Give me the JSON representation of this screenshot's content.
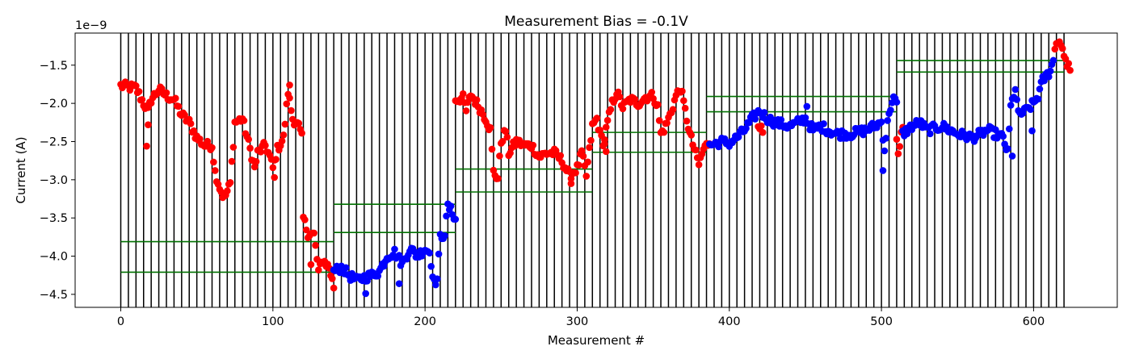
{
  "chart_data": {
    "type": "scatter",
    "title": "Measurement Bias = -0.1V",
    "xlabel": "Measurement #",
    "ylabel": "Current (A)",
    "y_exponent_label": "1e−9",
    "xlim": [
      -30,
      655
    ],
    "ylim": [
      -4.67,
      -1.08
    ],
    "xticks": [
      0,
      100,
      200,
      300,
      400,
      500,
      600
    ],
    "xtick_labels": [
      "0",
      "100",
      "200",
      "300",
      "400",
      "500",
      "600"
    ],
    "yticks": [
      -4.5,
      -4.0,
      -3.5,
      -3.0,
      -2.5,
      -2.0,
      -1.5
    ],
    "ytick_labels": [
      "−4.5",
      "−4.0",
      "−3.5",
      "−3.0",
      "−2.5",
      "−2.0",
      "−1.5"
    ],
    "vertical_lines": {
      "color": "#000000",
      "x": [
        0,
        5,
        10,
        15,
        20,
        25,
        30,
        35,
        40,
        45,
        50,
        55,
        60,
        65,
        70,
        75,
        80,
        85,
        90,
        95,
        100,
        105,
        110,
        115,
        120,
        125,
        130,
        135,
        140,
        145,
        150,
        155,
        160,
        165,
        170,
        175,
        180,
        185,
        190,
        195,
        200,
        205,
        210,
        215,
        220,
        225,
        230,
        235,
        240,
        245,
        250,
        255,
        260,
        265,
        270,
        275,
        280,
        285,
        290,
        295,
        300,
        305,
        310,
        315,
        320,
        325,
        330,
        335,
        340,
        345,
        350,
        355,
        360,
        365,
        370,
        375,
        380,
        385,
        390,
        395,
        400,
        405,
        410,
        415,
        420,
        425,
        430,
        435,
        440,
        445,
        450,
        455,
        460,
        465,
        470,
        475,
        480,
        485,
        490,
        495,
        500,
        505,
        510,
        515,
        520,
        525,
        530,
        535,
        540,
        545,
        550,
        555,
        560,
        565,
        570,
        575,
        580,
        585,
        590,
        595,
        600,
        605,
        610,
        615,
        620
      ]
    },
    "green_lines": {
      "color": "#007000",
      "segments": [
        {
          "x": [
            0,
            140
          ],
          "y": -3.81
        },
        {
          "x": [
            0,
            140
          ],
          "y": -4.21
        },
        {
          "x": [
            140,
            220
          ],
          "y": -3.32
        },
        {
          "x": [
            140,
            220
          ],
          "y": -3.69
        },
        {
          "x": [
            220,
            310
          ],
          "y": -2.86
        },
        {
          "x": [
            220,
            310
          ],
          "y": -3.16
        },
        {
          "x": [
            310,
            385
          ],
          "y": -2.38
        },
        {
          "x": [
            310,
            385
          ],
          "y": -2.64
        },
        {
          "x": [
            385,
            510
          ],
          "y": -1.91
        },
        {
          "x": [
            385,
            510
          ],
          "y": -2.11
        },
        {
          "x": [
            510,
            620
          ],
          "y": -1.44
        },
        {
          "x": [
            510,
            620
          ],
          "y": -1.59
        }
      ]
    },
    "series": [
      {
        "color": "#ff0000",
        "segments": [
          {
            "x0": 0,
            "knots": [
              [
                0,
                -1.77
              ],
              [
                10,
                -1.8
              ],
              [
                15,
                -2.0
              ],
              [
                18,
                -2.1
              ],
              [
                20,
                -1.95
              ],
              [
                25,
                -1.82
              ],
              [
                30,
                -1.9
              ],
              [
                35,
                -1.95
              ],
              [
                40,
                -2.15
              ],
              [
                45,
                -2.25
              ],
              [
                50,
                -2.45
              ],
              [
                55,
                -2.55
              ],
              [
                60,
                -2.55
              ],
              [
                62,
                -2.9
              ],
              [
                65,
                -3.1
              ],
              [
                68,
                -3.25
              ],
              [
                72,
                -3.05
              ],
              [
                75,
                -2.25
              ],
              [
                80,
                -2.2
              ],
              [
                85,
                -2.6
              ],
              [
                88,
                -2.85
              ],
              [
                90,
                -2.65
              ],
              [
                95,
                -2.55
              ],
              [
                98,
                -2.7
              ],
              [
                100,
                -2.85
              ],
              [
                103,
                -2.6
              ],
              [
                107,
                -2.45
              ],
              [
                110,
                -1.85
              ],
              [
                113,
                -2.2
              ],
              [
                117,
                -2.3
              ],
              [
                119,
                -2.45
              ],
              [
                120,
                -3.5
              ],
              [
                123,
                -3.7
              ],
              [
                127,
                -3.72
              ],
              [
                130,
                -4.2
              ],
              [
                133,
                -4.05
              ],
              [
                137,
                -4.15
              ],
              [
                140,
                -4.4
              ]
            ],
            "spikes": [
              [
                17,
                -2.56
              ],
              [
                18,
                -2.28
              ],
              [
                111,
                -1.76
              ],
              [
                101,
                -2.97
              ],
              [
                125,
                -4.11
              ]
            ]
          },
          {
            "x0": 220,
            "knots": [
              [
                220,
                -1.95
              ],
              [
                225,
                -1.93
              ],
              [
                227,
                -2.1
              ],
              [
                230,
                -1.88
              ],
              [
                235,
                -2.03
              ],
              [
                240,
                -2.2
              ],
              [
                243,
                -2.35
              ],
              [
                245,
                -2.9
              ],
              [
                248,
                -2.98
              ],
              [
                250,
                -2.5
              ],
              [
                253,
                -2.35
              ],
              [
                255,
                -2.65
              ],
              [
                260,
                -2.5
              ],
              [
                265,
                -2.55
              ],
              [
                270,
                -2.55
              ],
              [
                275,
                -2.7
              ],
              [
                280,
                -2.65
              ],
              [
                285,
                -2.65
              ],
              [
                290,
                -2.75
              ],
              [
                295,
                -2.95
              ],
              [
                300,
                -2.85
              ],
              [
                303,
                -2.65
              ],
              [
                306,
                -2.95
              ],
              [
                310,
                -2.3
              ],
              [
                313,
                -2.2
              ],
              [
                315,
                -2.4
              ],
              [
                318,
                -2.55
              ]
            ],
            "spikes": [
              [
                303,
                -2.62
              ],
              [
                296,
                -3.05
              ]
            ]
          },
          {
            "x0": 318,
            "knots": [
              [
                318,
                -2.45
              ],
              [
                320,
                -2.25
              ],
              [
                323,
                -2.0
              ],
              [
                326,
                -1.85
              ],
              [
                330,
                -2.05
              ],
              [
                335,
                -1.95
              ],
              [
                340,
                -2.0
              ],
              [
                345,
                -1.92
              ],
              [
                350,
                -1.9
              ],
              [
                353,
                -2.05
              ],
              [
                355,
                -2.4
              ],
              [
                358,
                -2.3
              ],
              [
                362,
                -2.1
              ],
              [
                365,
                -1.9
              ],
              [
                368,
                -1.8
              ],
              [
                371,
                -2.1
              ],
              [
                374,
                -2.4
              ],
              [
                377,
                -2.6
              ],
              [
                380,
                -2.8
              ],
              [
                383,
                -2.6
              ],
              [
                387,
                -2.5
              ]
            ],
            "spikes": [
              [
                319,
                -2.63
              ]
            ]
          },
          {
            "x0": 419,
            "knots": [
              [
                419,
                -2.25
              ],
              [
                422,
                -2.38
              ]
            ],
            "spikes": []
          },
          {
            "x0": 510,
            "knots": [
              [
                510,
                -2.45
              ],
              [
                511,
                -2.6
              ],
              [
                514,
                -2.35
              ]
            ],
            "spikes": []
          },
          {
            "x0": 614,
            "knots": [
              [
                614,
                -1.3
              ],
              [
                617,
                -1.22
              ],
              [
                620,
                -1.4
              ],
              [
                624,
                -1.55
              ]
            ],
            "spikes": []
          }
        ]
      },
      {
        "color": "#0000ff",
        "segments": [
          {
            "x0": 140,
            "knots": [
              [
                140,
                -4.2
              ],
              [
                145,
                -4.15
              ],
              [
                150,
                -4.25
              ],
              [
                155,
                -4.32
              ],
              [
                160,
                -4.28
              ],
              [
                165,
                -4.25
              ],
              [
                170,
                -4.2
              ],
              [
                175,
                -4.0
              ],
              [
                180,
                -3.95
              ],
              [
                185,
                -4.1
              ],
              [
                190,
                -3.9
              ],
              [
                195,
                -4.0
              ],
              [
                200,
                -3.9
              ],
              [
                203,
                -3.95
              ],
              [
                206,
                -4.35
              ],
              [
                208,
                -4.3
              ],
              [
                210,
                -3.75
              ],
              [
                213,
                -3.7
              ],
              [
                215,
                -3.35
              ],
              [
                217,
                -3.4
              ],
              [
                220,
                -3.5
              ]
            ],
            "spikes": [
              [
                161,
                -4.49
              ],
              [
                183,
                -4.36
              ]
            ]
          },
          {
            "x0": 387,
            "knots": [
              [
                387,
                -2.55
              ],
              [
                395,
                -2.5
              ],
              [
                400,
                -2.52
              ],
              [
                405,
                -2.45
              ],
              [
                410,
                -2.35
              ],
              [
                415,
                -2.2
              ],
              [
                420,
                -2.1
              ],
              [
                425,
                -2.2
              ],
              [
                430,
                -2.25
              ],
              [
                440,
                -2.3
              ],
              [
                450,
                -2.2
              ],
              [
                455,
                -2.35
              ],
              [
                460,
                -2.3
              ],
              [
                470,
                -2.4
              ],
              [
                480,
                -2.4
              ],
              [
                490,
                -2.35
              ],
              [
                495,
                -2.3
              ],
              [
                500,
                -2.25
              ],
              [
                502,
                -2.6
              ],
              [
                505,
                -2.1
              ],
              [
                508,
                -1.95
              ],
              [
                510,
                -2.0
              ]
            ],
            "spikes": [
              [
                451,
                -2.04
              ],
              [
                501,
                -2.88
              ]
            ]
          },
          {
            "x0": 514,
            "knots": [
              [
                514,
                -2.4
              ],
              [
                520,
                -2.3
              ],
              [
                525,
                -2.25
              ],
              [
                530,
                -2.35
              ],
              [
                540,
                -2.3
              ],
              [
                550,
                -2.4
              ],
              [
                560,
                -2.45
              ],
              [
                570,
                -2.35
              ],
              [
                580,
                -2.45
              ],
              [
                583,
                -2.65
              ],
              [
                585,
                -2.05
              ],
              [
                588,
                -1.8
              ],
              [
                590,
                -2.15
              ],
              [
                595,
                -2.1
              ],
              [
                600,
                -2.0
              ],
              [
                603,
                -1.9
              ],
              [
                606,
                -1.7
              ],
              [
                610,
                -1.6
              ],
              [
                613,
                -1.45
              ]
            ],
            "spikes": [
              [
                586,
                -2.69
              ],
              [
                599,
                -2.36
              ]
            ]
          }
        ]
      }
    ]
  }
}
